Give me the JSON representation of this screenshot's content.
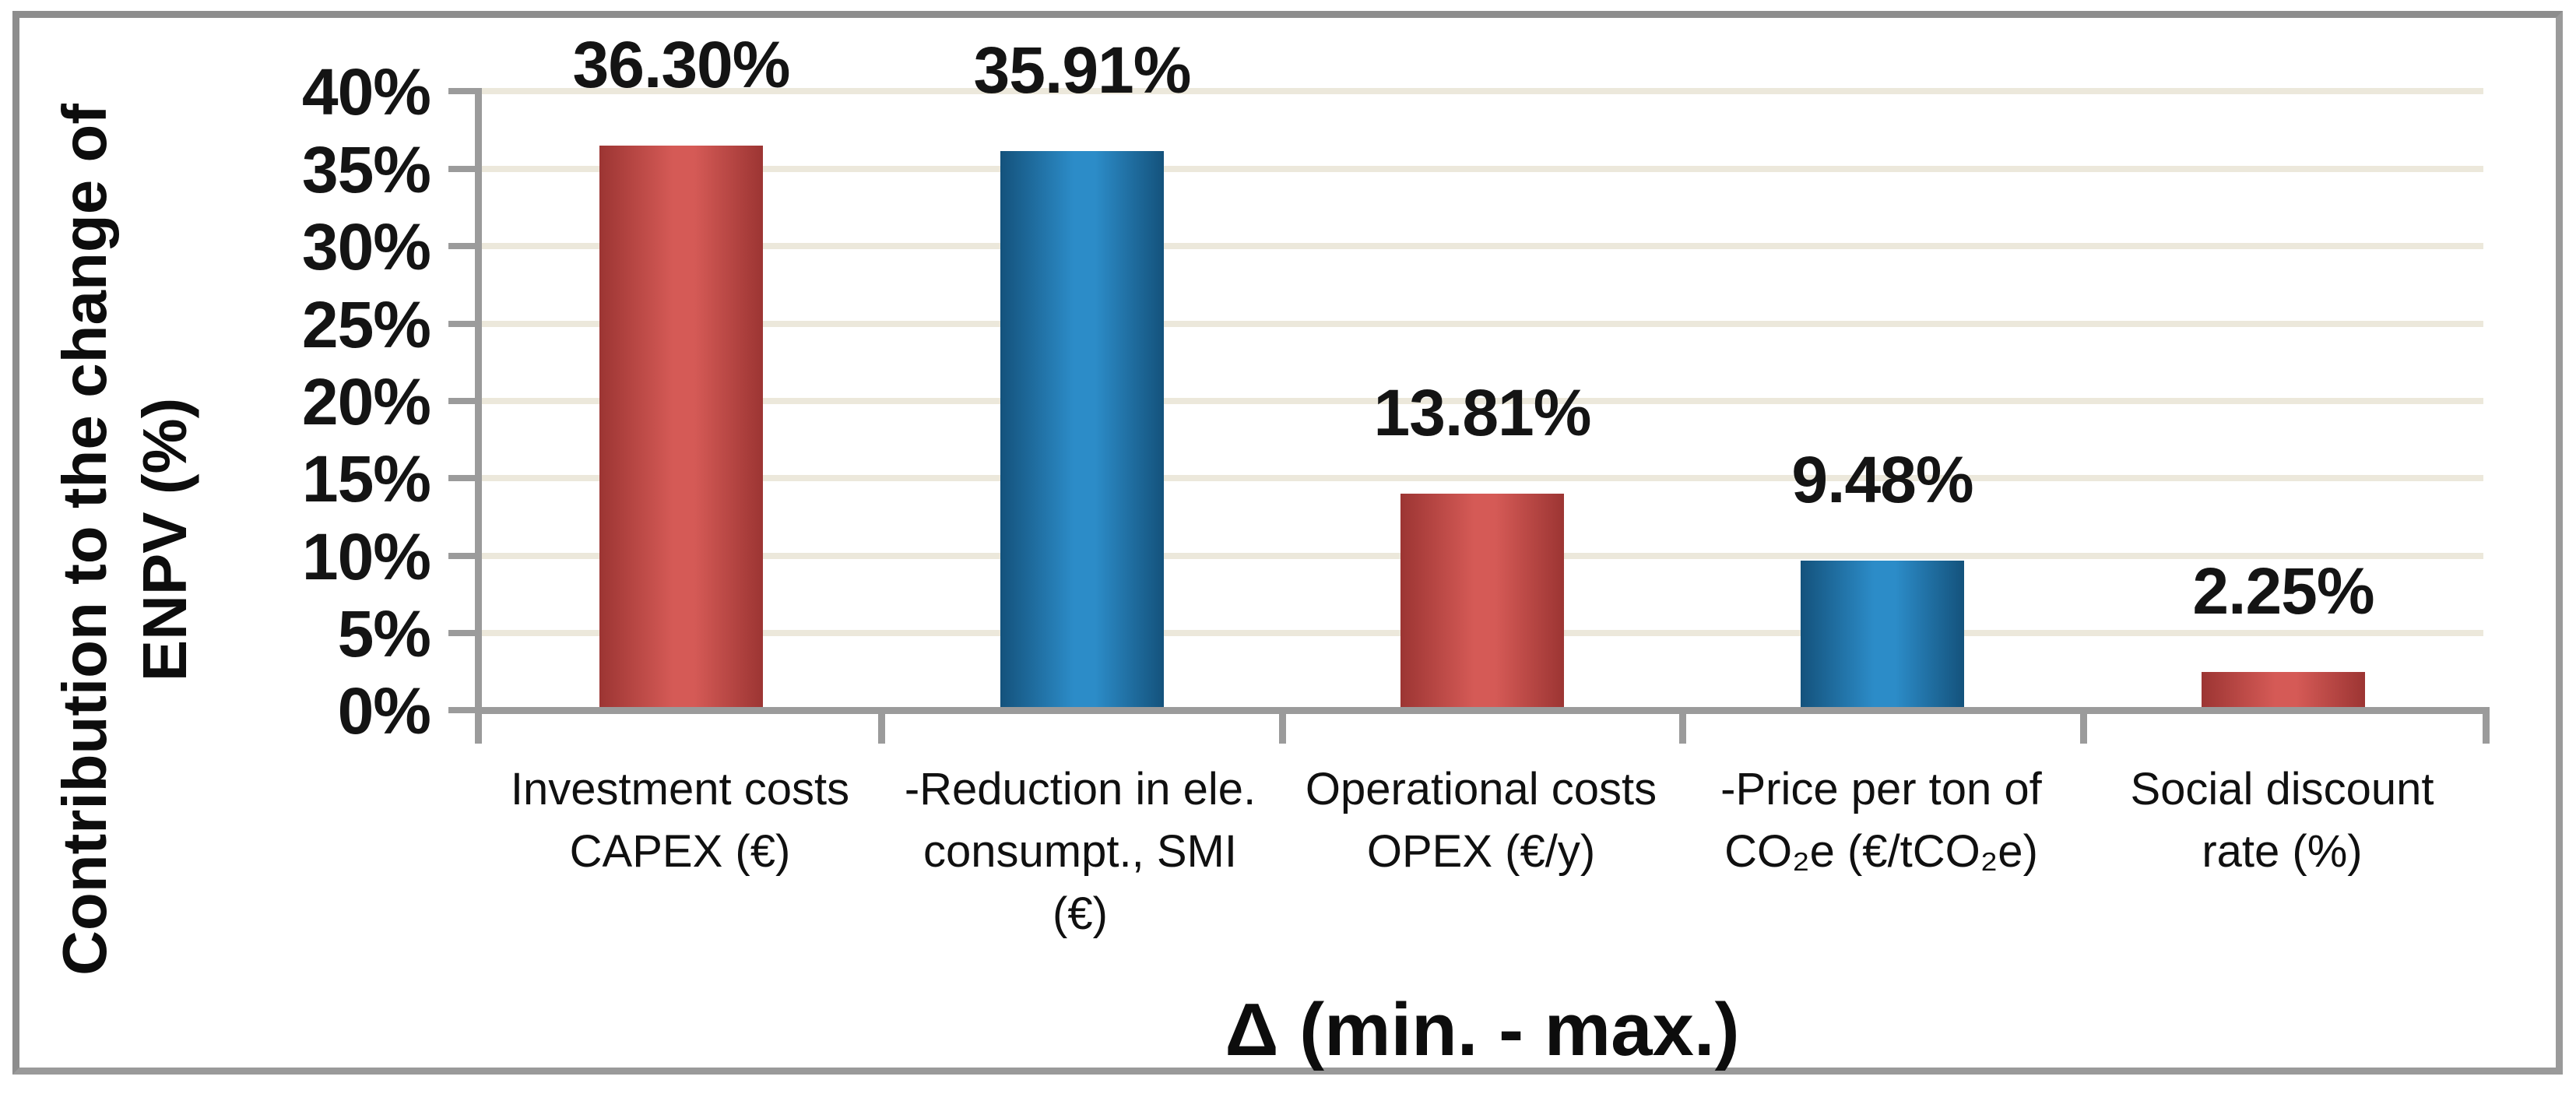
{
  "chart_data": {
    "type": "bar",
    "title": "",
    "categories": [
      "Investment costs CAPEX (€)",
      "-Reduction in ele. consumpt., SMI (€)",
      "Operational costs OPEX (€/y)",
      "-Price per ton of CO₂e (€/tCO₂e)",
      "Social discount rate (%)"
    ],
    "categories_lines": [
      [
        "Investment costs",
        "CAPEX (€)"
      ],
      [
        "-Reduction in ele.",
        "consumpt., SMI",
        "(€)"
      ],
      [
        "Operational costs",
        "OPEX (€/y)"
      ],
      [
        "-Price per ton of",
        "CO₂e (€/tCO₂e)"
      ],
      [
        "Social discount",
        "rate (%)"
      ]
    ],
    "values": [
      36.3,
      35.91,
      13.81,
      9.48,
      2.25
    ],
    "value_labels": [
      "36.30%",
      "35.91%",
      "13.81%",
      "9.48%",
      "2.25%"
    ],
    "bar_colors": [
      {
        "edge": "#9c3533",
        "center": "#d55a56"
      },
      {
        "edge": "#14527c",
        "center": "#2c8cc8"
      },
      {
        "edge": "#9c3533",
        "center": "#d55a56"
      },
      {
        "edge": "#14527c",
        "center": "#2c8cc8"
      },
      {
        "edge": "#9c3533",
        "center": "#d55a56"
      }
    ],
    "xlabel": "Δ (min. - max.)",
    "ylabel": "Contribution to the change of ENPV (%)",
    "ylabel_lines": [
      "Contribution to the change of",
      "ENPV (%)"
    ],
    "yticks": [
      "40%",
      "35%",
      "30%",
      "25%",
      "20%",
      "15%",
      "10%",
      "5%",
      "0%"
    ],
    "ylim": [
      0,
      40
    ],
    "ytick_step": 5,
    "grid": "horizontal-beige",
    "legend": "none",
    "colors": {
      "gridline": "#ece8db",
      "axis": "#9b9b9b",
      "frame": "#8d8d8d",
      "red_bar": "#c0504d",
      "blue_bar": "#1f77ae",
      "text": "#141414",
      "background": "#ffffff"
    }
  }
}
